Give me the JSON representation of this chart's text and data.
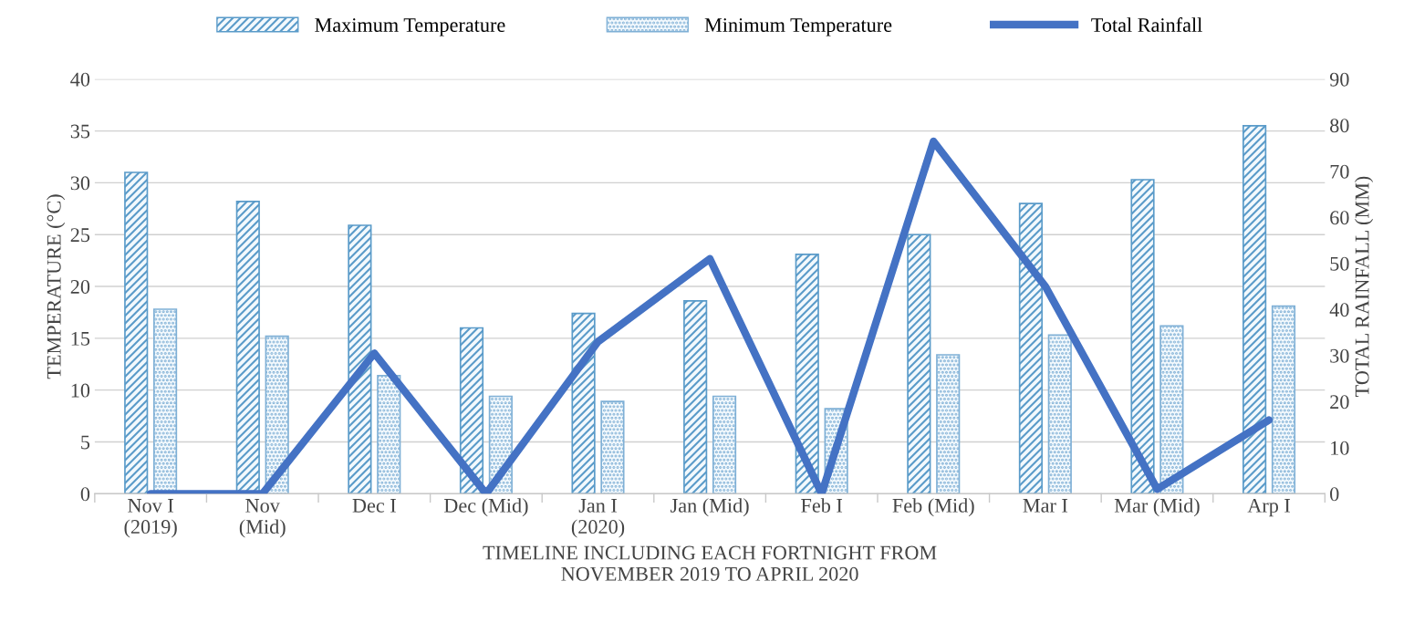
{
  "chart_data": {
    "type": "bar",
    "categories": [
      "Nov I\n(2019)",
      "Nov\n(Mid)",
      "Dec I",
      "Dec (Mid)",
      "Jan I\n(2020)",
      "Jan (Mid)",
      "Feb I",
      "Feb (Mid)",
      "Mar I",
      "Mar (Mid)",
      "Arp I"
    ],
    "series": [
      {
        "name": "Maximum Temperature",
        "color": "#5a9bc9",
        "values": [
          31,
          28.2,
          25.9,
          16,
          17.4,
          18.6,
          23.1,
          25,
          28,
          30.3,
          35.5
        ]
      },
      {
        "name": "Minimum Temperature",
        "color": "#7fb0d6",
        "values": [
          17.8,
          15.2,
          11.4,
          9.4,
          8.9,
          9.4,
          8.2,
          13.4,
          15.3,
          16.2,
          18.1
        ]
      },
      {
        "name": "Total Rainfall",
        "type": "line",
        "axis": "y2",
        "color": "#4472c4",
        "values": [
          0,
          0,
          30.5,
          0,
          33,
          51,
          0,
          76.5,
          45,
          1,
          16
        ]
      }
    ],
    "xlabel": "TIMELINE INCLUDING EACH FORTNIGHT FROM\nNOVEMBER 2019 TO APRIL 2020",
    "ylabel": "TEMPERATURE (°C)",
    "y2label": "TOTAL RAINFALL (MM)",
    "ylim": [
      0,
      40
    ],
    "yticks": [
      0,
      5,
      10,
      15,
      20,
      25,
      30,
      35,
      40
    ],
    "y2lim": [
      0,
      90
    ],
    "y2ticks": [
      0,
      10,
      20,
      30,
      40,
      50,
      60,
      70,
      80,
      90
    ],
    "grid": "y",
    "legend": "top"
  }
}
